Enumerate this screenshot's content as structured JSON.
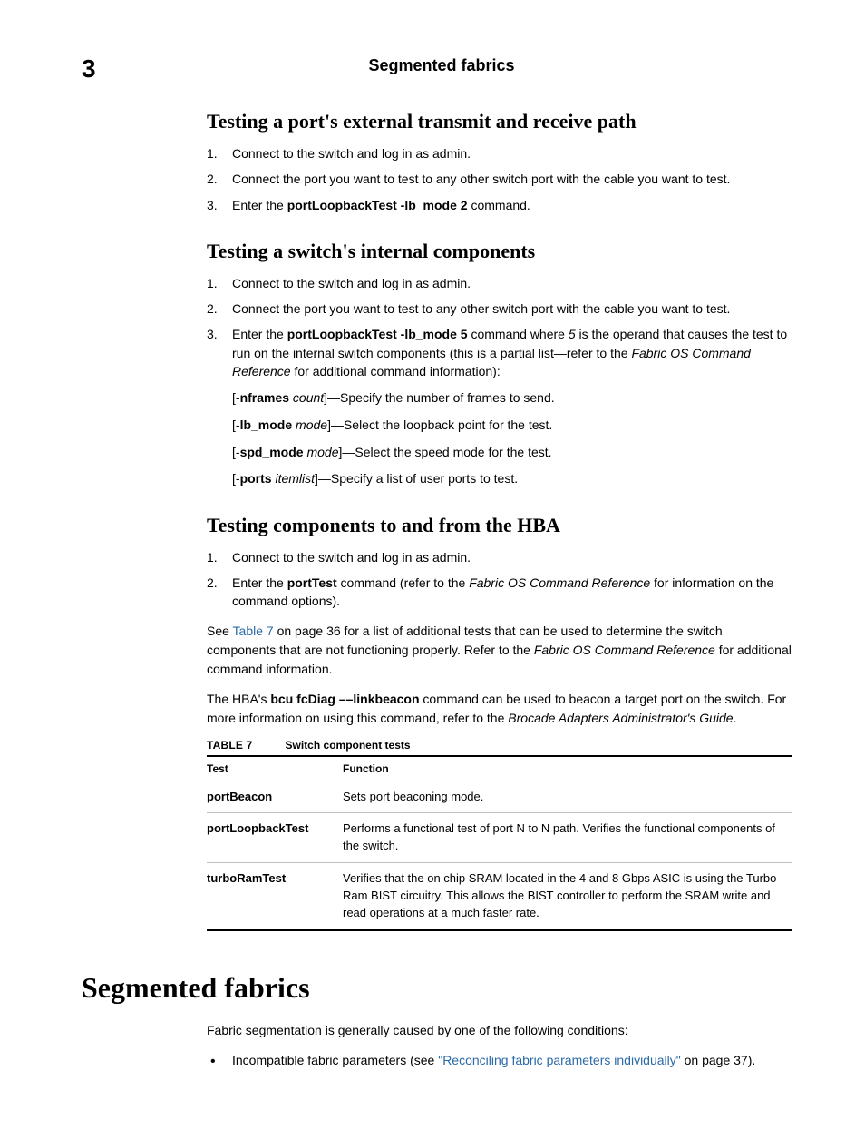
{
  "header": {
    "chapter_number": "3",
    "page_title": "Segmented fabrics"
  },
  "section1": {
    "heading": "Testing a port's external transmit and receive path",
    "steps": [
      {
        "plain": "Connect to the switch and log in as admin."
      },
      {
        "plain": "Connect the port you want to test to any other switch port with the cable you want to test."
      },
      {
        "pre": "Enter the ",
        "bold": "portLoopbackTest -lb_mode 2",
        "post": " command."
      }
    ]
  },
  "section2": {
    "heading": "Testing a switch's internal components",
    "steps": [
      {
        "plain": "Connect to the switch and log in as admin."
      },
      {
        "plain": "Connect the port you want to test to any other switch port with the cable you want to test."
      },
      {
        "pre": "Enter the ",
        "bold": "portLoopbackTest -lb_mode 5",
        "mid1": " command where ",
        "ital1": "5",
        "mid2": " is the operand that causes the test to run on the internal switch components (this is a partial list—refer to the ",
        "ital2": "Fabric OS Command Reference",
        "post": " for additional command information):"
      }
    ],
    "options": [
      {
        "lb": "[-",
        "flag": "nframes",
        "arg": " count",
        "rb": "]—Specify the number of frames to send."
      },
      {
        "lb": "[-",
        "flag": "lb_mode",
        "arg": " mode",
        "rb": "]—Select the loopback point for the test."
      },
      {
        "lb": "[-",
        "flag": "spd_mode",
        "arg": " mode",
        "rb": "]—Select the speed mode for the test."
      },
      {
        "lb": "[-",
        "flag": "ports",
        "arg": " itemlist",
        "rb": "]—Specify a list of user ports to test."
      }
    ]
  },
  "section3": {
    "heading": "Testing components to and from the HBA",
    "steps": [
      {
        "plain": "Connect to the switch and log in as admin."
      },
      {
        "pre": "Enter the ",
        "bold": "portTest",
        "mid1": " command (refer to the ",
        "ital1": "Fabric OS Command Reference",
        "post": " for information on the command options)."
      }
    ],
    "para1": {
      "pre": "See ",
      "link": "Table 7",
      "mid": " on page 36 for a list of additional tests that can be used to determine the switch components that are not functioning properly. Refer to the ",
      "ital": "Fabric OS Command Reference",
      "post": " for additional command information."
    },
    "para2": {
      "pre": "The HBA's ",
      "bold": "bcu fcDiag ––linkbeacon",
      "mid": " command can be used to beacon a target port on the switch. For more information on using this command, refer to the ",
      "ital": "Brocade Adapters Administrator's Guide",
      "post": "."
    }
  },
  "table": {
    "caption_label": "TABLE 7",
    "caption_text": "Switch component tests",
    "headers": [
      "Test",
      "Function"
    ],
    "rows": [
      {
        "test": "portBeacon",
        "func": "Sets port beaconing mode."
      },
      {
        "test": "portLoopbackTest",
        "func": "Performs a functional test of port N to N path. Verifies the functional components of the switch."
      },
      {
        "test": "turboRamTest",
        "func": "Verifies that the on chip SRAM located in the 4 and 8 Gbps ASIC is using the Turbo-Ram BIST circuitry. This allows the BIST controller to perform the SRAM write and read operations at a much faster rate."
      }
    ]
  },
  "bottom": {
    "heading": "Segmented fabrics",
    "intro": "Fabric segmentation is generally caused by one of the following conditions:",
    "bullet": {
      "pre": "Incompatible fabric parameters (see ",
      "link": "\"Reconciling fabric parameters individually\"",
      "post": " on page 37)."
    }
  }
}
